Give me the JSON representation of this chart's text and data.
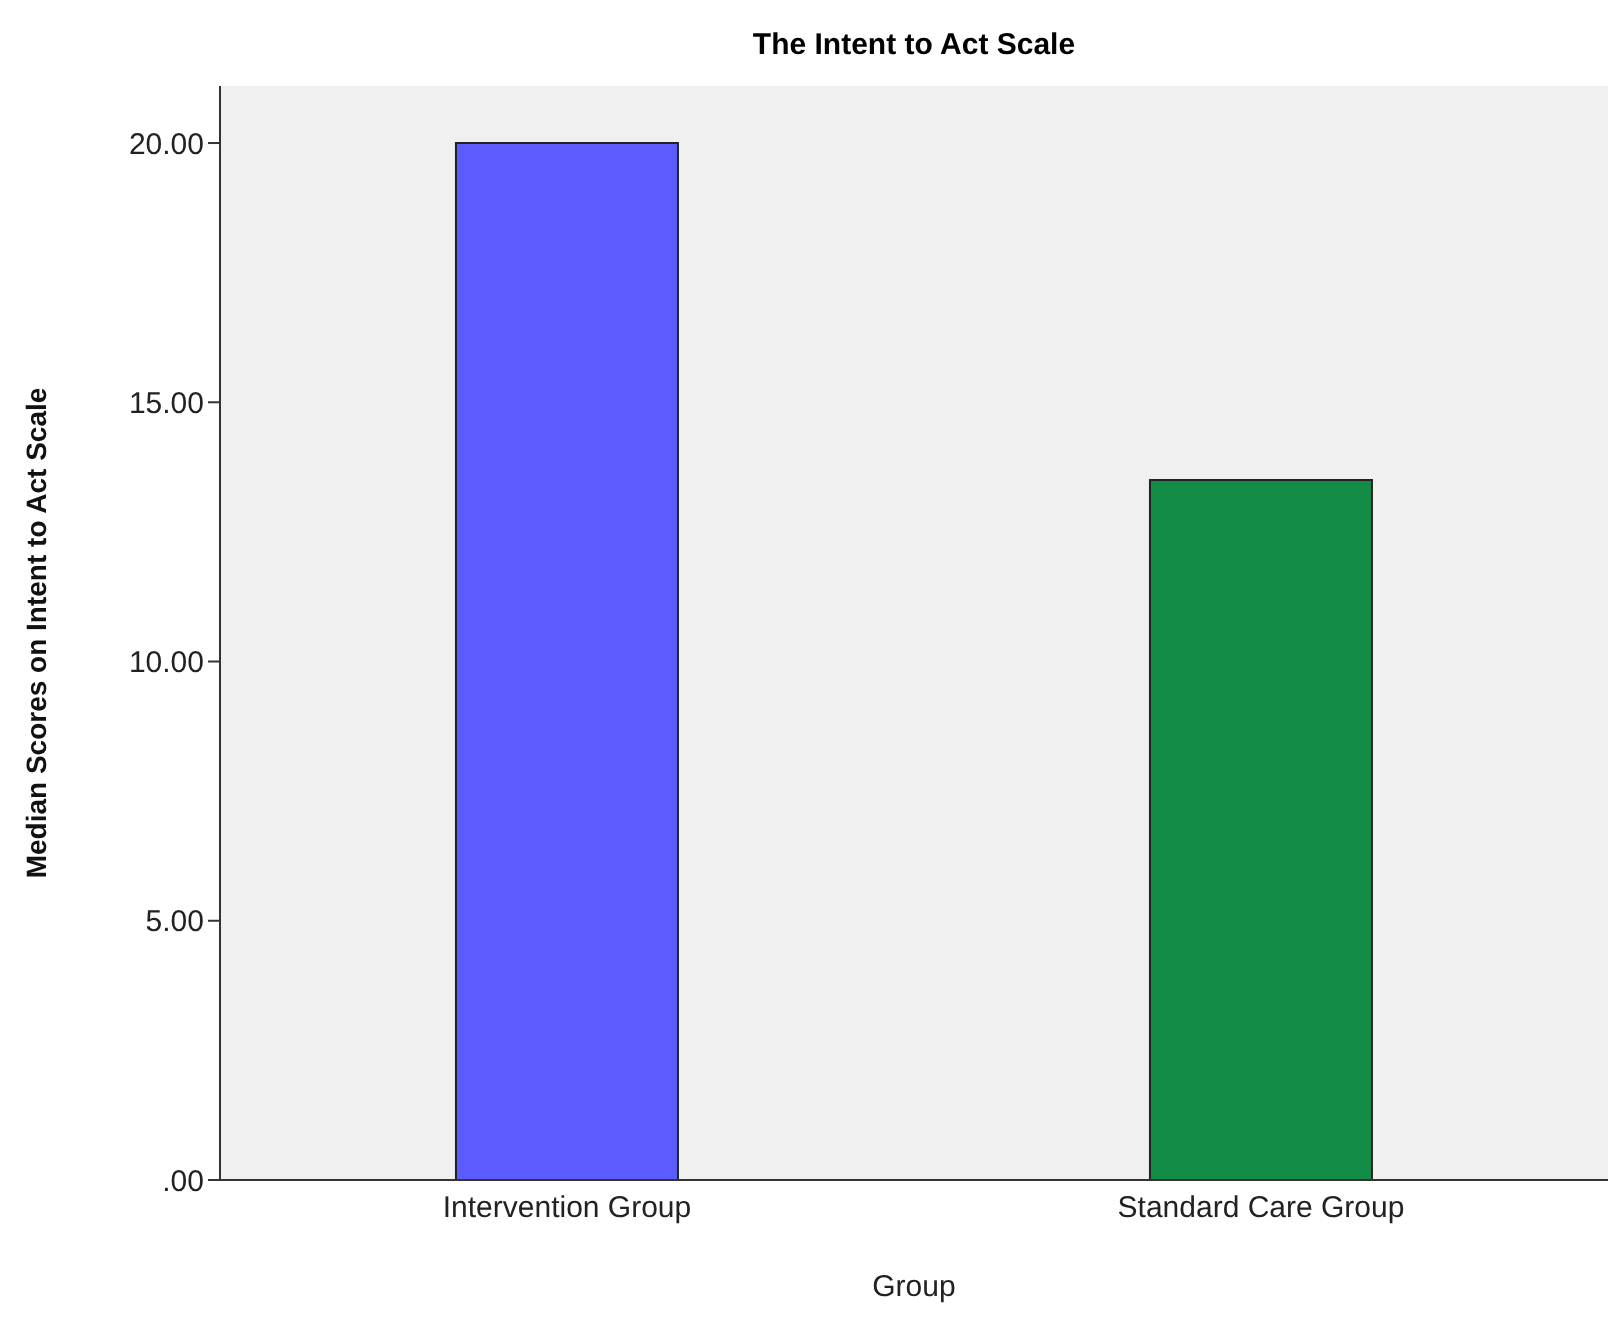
{
  "chart_data": {
    "type": "bar",
    "title": "The Intent to Act Scale",
    "xlabel": "Group",
    "ylabel": "Median Scores on Intent to Act Scale",
    "categories": [
      "Intervention Group",
      "Standard Care Group"
    ],
    "values": [
      20,
      13.5
    ],
    "colors": [
      "#5b5bff",
      "#138c48"
    ],
    "ylim": [
      0,
      21.1
    ],
    "yticks": [
      {
        "value": 0,
        "label": ".00"
      },
      {
        "value": 5,
        "label": "5.00"
      },
      {
        "value": 10,
        "label": "10.00"
      },
      {
        "value": 15,
        "label": "15.00"
      },
      {
        "value": 20,
        "label": "20.00"
      }
    ],
    "grid": false,
    "legend": false
  }
}
